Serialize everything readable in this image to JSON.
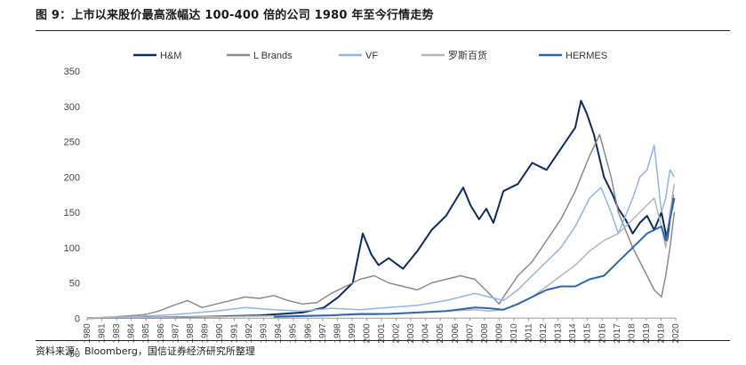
{
  "page": {
    "title": "图 9：上市以来股价最高涨幅达 100-400 倍的公司 1980 年至今行情走势",
    "source": "资料来源：Bloomberg，国信证券经济研究所整理"
  },
  "chart_data": {
    "type": "line",
    "title": "图 9：上市以来股价最高涨幅达 100-400 倍的公司 1980 年至今行情走势",
    "xlabel": "",
    "ylabel": "",
    "ylim": [
      -50,
      350
    ],
    "yticks": [
      -50,
      0,
      50,
      100,
      150,
      200,
      250,
      300,
      350
    ],
    "xlim": [
      1980,
      2021
    ],
    "xticks": [
      "1980",
      "1981",
      "1983",
      "1984",
      "1985",
      "1986",
      "1987",
      "1988",
      "1989",
      "1990",
      "1991",
      "1992",
      "1993",
      "1994",
      "1995",
      "1996",
      "1997",
      "1998",
      "1999",
      "2000",
      "2001",
      "2002",
      "2003",
      "2004",
      "2005",
      "2006",
      "2007",
      "2008",
      "2009",
      "2010",
      "2011",
      "2012",
      "2013",
      "2014",
      "2015",
      "2016",
      "2017",
      "2018",
      "2019",
      "2019",
      "2020"
    ],
    "legend_position": "top-center",
    "series": [
      {
        "name": "H&M",
        "color": "#0e2b5c",
        "width": 2,
        "x": [
          1980,
          1984,
          1988,
          1992,
          1995,
          1996.5,
          1997.5,
          1998.5,
          1999.2,
          1999.8,
          2000.3,
          2001,
          2002,
          2003,
          2004,
          2005,
          2006.2,
          2006.7,
          2007.3,
          2007.8,
          2008.3,
          2009,
          2010,
          2011,
          2012,
          2013,
          2014,
          2014.4,
          2014.8,
          2015.3,
          2016,
          2016.6,
          2017,
          2017.5,
          2018,
          2018.5,
          2019,
          2019.5,
          2020,
          2020.4,
          2020.6,
          2020.8
        ],
        "values": [
          0,
          1,
          2,
          4,
          8,
          15,
          30,
          50,
          120,
          90,
          75,
          85,
          70,
          95,
          125,
          145,
          185,
          160,
          140,
          155,
          135,
          180,
          190,
          220,
          210,
          240,
          270,
          308,
          290,
          260,
          200,
          175,
          155,
          140,
          120,
          135,
          145,
          125,
          150,
          110,
          140,
          175
        ]
      },
      {
        "name": "L Brands",
        "color": "#8a8a8a",
        "width": 1.5,
        "x": [
          1980,
          1982,
          1984,
          1985,
          1986,
          1987,
          1988,
          1989,
          1990,
          1991,
          1992,
          1993,
          1994,
          1995,
          1996,
          1997,
          1998,
          1999,
          2000,
          2001,
          2002,
          2003,
          2004,
          2005,
          2006,
          2007,
          2008,
          2008.7,
          2009,
          2010,
          2011,
          2012,
          2013,
          2014,
          2015,
          2015.7,
          2016.5,
          2017,
          2018,
          2018.5,
          2019,
          2019.5,
          2020,
          2020.3,
          2020.6,
          2020.9
        ],
        "values": [
          0,
          2,
          5,
          10,
          18,
          25,
          15,
          20,
          25,
          30,
          28,
          32,
          25,
          20,
          22,
          35,
          45,
          55,
          60,
          50,
          45,
          40,
          50,
          55,
          60,
          55,
          35,
          20,
          30,
          60,
          80,
          110,
          140,
          180,
          230,
          260,
          200,
          150,
          100,
          80,
          60,
          40,
          30,
          60,
          100,
          150
        ]
      },
      {
        "name": "VF",
        "color": "#94b4e6",
        "width": 1.5,
        "x": [
          1980,
          1983,
          1986,
          1989,
          1991,
          1993,
          1995,
          1997,
          1999,
          2001,
          2003,
          2005,
          2007,
          2008,
          2009,
          2010,
          2011,
          2012,
          2013,
          2014,
          2015,
          2015.8,
          2016.5,
          2017,
          2018,
          2018.5,
          2019,
          2019.5,
          2020,
          2020.3,
          2020.6,
          2020.9
        ],
        "values": [
          0,
          2,
          5,
          10,
          15,
          12,
          10,
          14,
          12,
          15,
          18,
          25,
          35,
          30,
          25,
          40,
          60,
          80,
          100,
          130,
          170,
          185,
          150,
          120,
          170,
          200,
          210,
          245,
          150,
          170,
          210,
          200
        ]
      },
      {
        "name": "罗斯百货",
        "color": "#b5b5b5",
        "width": 1.5,
        "x": [
          1980,
          1984,
          1988,
          1992,
          1996,
          2000,
          2003,
          2005,
          2007,
          2008,
          2009,
          2010,
          2011,
          2012,
          2013,
          2014,
          2015,
          2016,
          2017,
          2018,
          2019,
          2019.5,
          2020,
          2020.3,
          2020.6,
          2020.9
        ],
        "values": [
          0,
          1,
          2,
          3,
          4,
          5,
          8,
          10,
          12,
          10,
          12,
          20,
          30,
          45,
          60,
          75,
          95,
          110,
          120,
          140,
          160,
          170,
          130,
          100,
          150,
          190
        ]
      },
      {
        "name": "HERMES",
        "color": "#2e65a8",
        "width": 2,
        "x": [
          1980,
          1992,
          1993,
          1995,
          1997,
          1999,
          2001,
          2003,
          2005,
          2007,
          2008,
          2009,
          2010,
          2011,
          2012,
          2013,
          2014,
          2015,
          2016,
          2017,
          2018,
          2019,
          2020,
          2020.3,
          2020.6,
          2020.9
        ],
        "values": [
          null,
          null,
          2,
          3,
          4,
          6,
          6,
          8,
          10,
          15,
          14,
          12,
          20,
          30,
          40,
          45,
          45,
          55,
          60,
          80,
          100,
          120,
          130,
          110,
          140,
          170
        ]
      }
    ]
  }
}
